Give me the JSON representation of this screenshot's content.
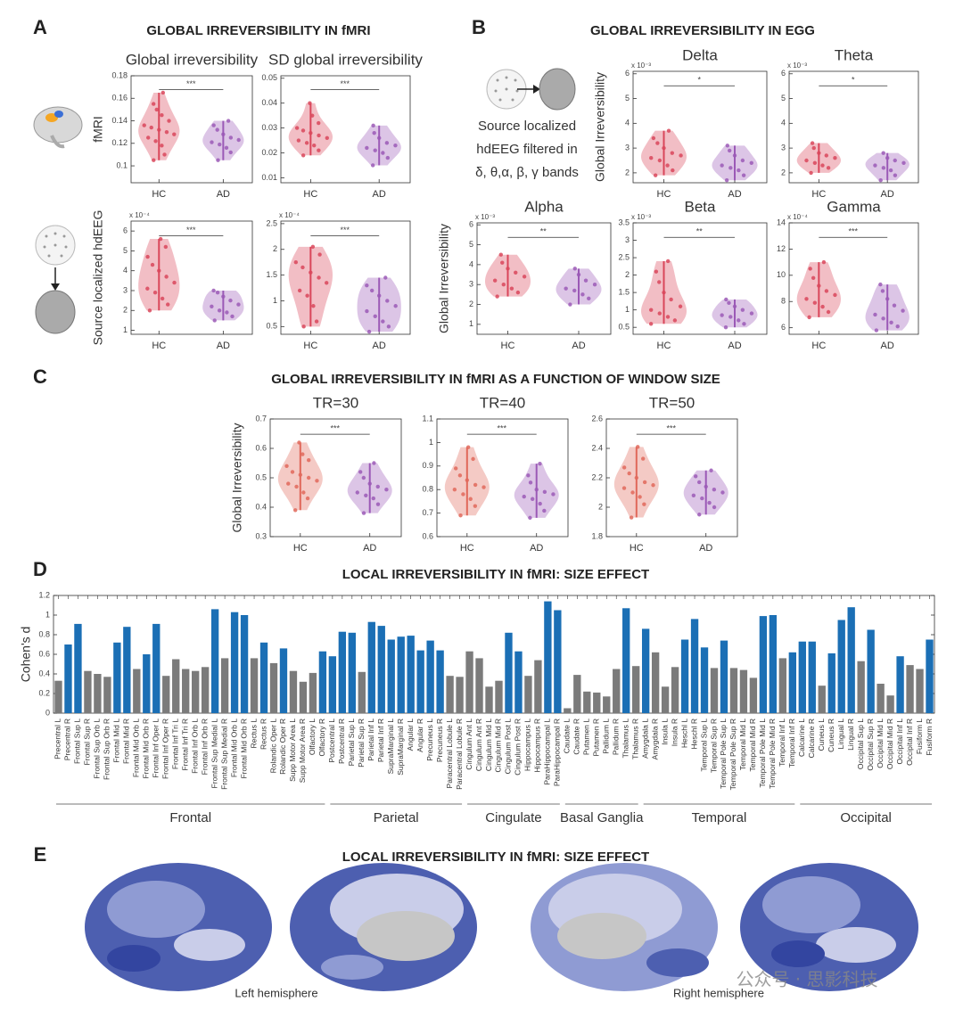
{
  "figure": {
    "panel_labels": [
      "A",
      "B",
      "C",
      "D",
      "E"
    ],
    "section_titles": [
      "GLOBAL IRREVERSIBILITY IN fMRI",
      "GLOBAL IRREVERSIBILITY IN EGG",
      "GLOBAL IRREVERSIBILITY  IN fMRI AS A FUNCTION OF WINDOW SIZE",
      "LOCAL IRREVERSIBILITY IN fMRI: SIZE EFFECT",
      "LOCAL IRREVERSIBILITY IN fMRI: SIZE EFFECT"
    ],
    "eeg_caption": [
      "Source localized",
      "hdEEG filtered in",
      "δ, θ,α, β, γ bands"
    ],
    "hemisphere_labels": [
      "Left hemisphere",
      "Right hemisphere"
    ],
    "watermark": "公众号 · 思影科技"
  },
  "chart_data": [
    {
      "type": "violin",
      "title": "Global irreversibility",
      "ylabel": "fMRI",
      "categories": [
        "HC",
        "AD"
      ],
      "significance": "***",
      "ylim": [
        0.085,
        0.18
      ],
      "yticks": [
        0.1,
        0.12,
        0.14,
        0.16,
        0.18
      ],
      "groups": [
        {
          "color": "#d9465a",
          "values": [
            0.105,
            0.11,
            0.118,
            0.122,
            0.125,
            0.128,
            0.13,
            0.132,
            0.134,
            0.136,
            0.14,
            0.145,
            0.15,
            0.155,
            0.165
          ]
        },
        {
          "color": "#9b59b6",
          "values": [
            0.105,
            0.112,
            0.116,
            0.119,
            0.121,
            0.123,
            0.125,
            0.128,
            0.132,
            0.136,
            0.14
          ]
        }
      ]
    },
    {
      "type": "violin",
      "title": "SD global irreversibility",
      "categories": [
        "HC",
        "AD"
      ],
      "significance": "***",
      "ylim": [
        0.008,
        0.051
      ],
      "yticks": [
        0.01,
        0.02,
        0.03,
        0.04,
        0.05
      ],
      "groups": [
        {
          "color": "#d9465a",
          "values": [
            0.019,
            0.021,
            0.023,
            0.024,
            0.025,
            0.026,
            0.027,
            0.028,
            0.029,
            0.03,
            0.032,
            0.035,
            0.04
          ]
        },
        {
          "color": "#9b59b6",
          "values": [
            0.015,
            0.018,
            0.02,
            0.021,
            0.022,
            0.023,
            0.024,
            0.026,
            0.028,
            0.031
          ]
        }
      ]
    },
    {
      "type": "violin",
      "ylabel": "Source localized hdEEG",
      "y_scale_label": "x 10⁻⁴",
      "categories": [
        "HC",
        "AD"
      ],
      "significance": "***",
      "ylim": [
        0.8,
        6.5
      ],
      "yticks": [
        1,
        2,
        3,
        4,
        5,
        6
      ],
      "groups": [
        {
          "color": "#d9465a",
          "values": [
            2,
            2.3,
            2.6,
            2.9,
            3.1,
            3.4,
            3.7,
            4,
            4.3,
            4.7,
            5.2,
            5.6
          ]
        },
        {
          "color": "#9b59b6",
          "values": [
            1.5,
            1.7,
            1.9,
            2,
            2.2,
            2.3,
            2.5,
            2.7,
            2.9,
            3
          ]
        }
      ]
    },
    {
      "type": "violin",
      "y_scale_label": "x 10⁻⁴",
      "categories": [
        "HC",
        "AD"
      ],
      "significance": "***",
      "ylim": [
        0.35,
        2.55
      ],
      "yticks": [
        0.5,
        1,
        1.5,
        2,
        2.5
      ],
      "groups": [
        {
          "color": "#d9465a",
          "values": [
            0.5,
            0.6,
            0.9,
            1.1,
            1.2,
            1.35,
            1.45,
            1.55,
            1.65,
            1.75,
            1.9,
            2.05
          ]
        },
        {
          "color": "#9b59b6",
          "values": [
            0.4,
            0.5,
            0.6,
            0.7,
            0.8,
            0.9,
            1,
            1.1,
            1.2,
            1.3,
            1.45
          ]
        }
      ]
    },
    {
      "type": "violin",
      "title": "Delta",
      "ylabel": "Global Irreversibility",
      "y_scale_label": "x 10⁻³",
      "categories": [
        "HC",
        "AD"
      ],
      "significance": "*",
      "ylim": [
        1.6,
        6.1
      ],
      "yticks": [
        2,
        3,
        4,
        5,
        6
      ],
      "groups": [
        {
          "color": "#d9465a",
          "values": [
            1.9,
            2.1,
            2.3,
            2.5,
            2.6,
            2.7,
            2.8,
            3,
            3.2,
            3.4,
            3.7
          ]
        },
        {
          "color": "#9b59b6",
          "values": [
            1.7,
            1.9,
            2.1,
            2.2,
            2.3,
            2.4,
            2.5,
            2.7,
            2.9,
            3.1
          ]
        }
      ]
    },
    {
      "type": "violin",
      "title": "Theta",
      "y_scale_label": "x 10⁻³",
      "categories": [
        "HC",
        "AD"
      ],
      "significance": "*",
      "ylim": [
        1.6,
        6.1
      ],
      "yticks": [
        2,
        3,
        4,
        5,
        6
      ],
      "groups": [
        {
          "color": "#d9465a",
          "values": [
            2,
            2.2,
            2.3,
            2.4,
            2.5,
            2.6,
            2.7,
            2.8,
            3,
            3.2
          ]
        },
        {
          "color": "#9b59b6",
          "values": [
            1.7,
            1.9,
            2.1,
            2.2,
            2.3,
            2.4,
            2.5,
            2.6,
            2.8
          ]
        }
      ]
    },
    {
      "type": "violin",
      "title": "Alpha",
      "ylabel": "Global Irreversibility",
      "y_scale_label": "x 10⁻³",
      "categories": [
        "HC",
        "AD"
      ],
      "significance": "**",
      "ylim": [
        0.5,
        6.1
      ],
      "yticks": [
        1,
        2,
        3,
        4,
        5,
        6
      ],
      "groups": [
        {
          "color": "#d9465a",
          "values": [
            2.4,
            2.6,
            2.8,
            3,
            3.2,
            3.4,
            3.6,
            3.8,
            4.1,
            4.5
          ]
        },
        {
          "color": "#9b59b6",
          "values": [
            2,
            2.3,
            2.5,
            2.7,
            2.8,
            3,
            3.2,
            3.5,
            3.8
          ]
        }
      ]
    },
    {
      "type": "violin",
      "title": "Beta",
      "y_scale_label": "x 10⁻³",
      "categories": [
        "HC",
        "AD"
      ],
      "significance": "**",
      "ylim": [
        0.3,
        3.5
      ],
      "yticks": [
        0.5,
        1,
        1.5,
        2,
        2.5,
        3,
        3.5
      ],
      "groups": [
        {
          "color": "#d9465a",
          "values": [
            0.6,
            0.7,
            0.8,
            0.9,
            1,
            1.1,
            1.3,
            1.5,
            1.8,
            2.1,
            2.4
          ]
        },
        {
          "color": "#9b59b6",
          "values": [
            0.5,
            0.6,
            0.7,
            0.8,
            0.85,
            0.9,
            1,
            1.1,
            1.2,
            1.3
          ]
        }
      ]
    },
    {
      "type": "violin",
      "title": "Gamma",
      "y_scale_label": "x 10⁻⁴",
      "categories": [
        "HC",
        "AD"
      ],
      "significance": "***",
      "ylim": [
        5.5,
        14
      ],
      "yticks": [
        6,
        8,
        10,
        12,
        14
      ],
      "groups": [
        {
          "color": "#d9465a",
          "values": [
            6.8,
            7.2,
            7.6,
            7.9,
            8.2,
            8.5,
            8.8,
            9.2,
            9.8,
            10.5,
            11
          ]
        },
        {
          "color": "#9b59b6",
          "values": [
            5.8,
            6.1,
            6.4,
            6.7,
            7,
            7.3,
            7.7,
            8.2,
            8.8,
            9.3
          ]
        }
      ]
    },
    {
      "type": "violin",
      "title": "TR=30",
      "ylabel": "Global Irreversibility",
      "categories": [
        "HC",
        "AD"
      ],
      "significance": "***",
      "ylim": [
        0.3,
        0.7
      ],
      "yticks": [
        0.3,
        0.4,
        0.5,
        0.6,
        0.7
      ],
      "groups": [
        {
          "color": "#e0685a",
          "values": [
            0.39,
            0.43,
            0.45,
            0.47,
            0.48,
            0.49,
            0.5,
            0.51,
            0.52,
            0.54,
            0.56,
            0.58,
            0.62
          ]
        },
        {
          "color": "#9b59b6",
          "values": [
            0.38,
            0.41,
            0.43,
            0.44,
            0.45,
            0.46,
            0.47,
            0.48,
            0.5,
            0.52,
            0.55
          ]
        }
      ]
    },
    {
      "type": "violin",
      "title": "TR=40",
      "categories": [
        "HC",
        "AD"
      ],
      "significance": "***",
      "ylim": [
        0.6,
        1.1
      ],
      "yticks": [
        0.6,
        0.7,
        0.8,
        0.9,
        1,
        1.1
      ],
      "groups": [
        {
          "color": "#e0685a",
          "values": [
            0.69,
            0.73,
            0.76,
            0.78,
            0.8,
            0.81,
            0.82,
            0.84,
            0.86,
            0.89,
            0.93,
            0.98
          ]
        },
        {
          "color": "#9b59b6",
          "values": [
            0.68,
            0.71,
            0.74,
            0.76,
            0.77,
            0.78,
            0.79,
            0.8,
            0.83,
            0.86,
            0.91
          ]
        }
      ]
    },
    {
      "type": "violin",
      "title": "TR=50",
      "categories": [
        "HC",
        "AD"
      ],
      "significance": "***",
      "ylim": [
        1.8,
        2.6
      ],
      "yticks": [
        1.8,
        2,
        2.2,
        2.4,
        2.6
      ],
      "groups": [
        {
          "color": "#e0685a",
          "values": [
            1.93,
            2.02,
            2.07,
            2.1,
            2.13,
            2.15,
            2.17,
            2.2,
            2.23,
            2.27,
            2.33,
            2.41
          ]
        },
        {
          "color": "#9b59b6",
          "values": [
            1.95,
            2,
            2.03,
            2.06,
            2.08,
            2.1,
            2.12,
            2.14,
            2.17,
            2.21,
            2.25
          ]
        }
      ]
    },
    {
      "type": "bar",
      "ylabel": "Cohen's d",
      "ylim": [
        0,
        1.2
      ],
      "yticks": [
        0,
        0.2,
        0.4,
        0.6,
        0.8,
        1,
        1.2
      ],
      "groups": [
        {
          "label": "Frontal",
          "categories": [
            "Precentral L",
            "Precentral R",
            "Frontal Sup L",
            "Frontal Sup R",
            "Frontal Sup Orb L",
            "Frontal Sup Orb R",
            "Frontal Mid L",
            "Frontal Mid R",
            "Frontal Mid Orb L",
            "Frontal Mid Orb R",
            "Frontal Inf Oper L",
            "Frontal Inf Oper R",
            "Frontal Inf Tri L",
            "Frontal Inf Tri R",
            "Frontal Inf Orb L",
            "Frontal Inf Orb R",
            "Frontal Sup Medial L",
            "Frontal Sup Medial R",
            "Frontal Mid Orb L",
            "Frontal Mid Orb R",
            "Rectus L",
            "Rectus R",
            "Rolandic Oper L",
            "Rolandic Oper R",
            "Supp Motor Area L",
            "Supp Motor Area R",
            "Olfactory L",
            "Olfactory R"
          ],
          "values": [
            0.33,
            0.7,
            0.91,
            0.43,
            0.4,
            0.37,
            0.72,
            0.88,
            0.45,
            0.6,
            0.91,
            0.38,
            0.55,
            0.45,
            0.43,
            0.47,
            1.06,
            0.56,
            1.03,
            1,
            0.56,
            0.72,
            0.51,
            0.66,
            0.43,
            0.32,
            0.41,
            0.63
          ],
          "colors": [
            "#7b7b7b",
            "#1b6fb5",
            "#1b6fb5",
            "#7b7b7b",
            "#7b7b7b",
            "#7b7b7b",
            "#1b6fb5",
            "#1b6fb5",
            "#7b7b7b",
            "#1b6fb5",
            "#1b6fb5",
            "#7b7b7b",
            "#7b7b7b",
            "#7b7b7b",
            "#7b7b7b",
            "#7b7b7b",
            "#1b6fb5",
            "#7b7b7b",
            "#1b6fb5",
            "#1b6fb5",
            "#7b7b7b",
            "#1b6fb5",
            "#7b7b7b",
            "#1b6fb5",
            "#7b7b7b",
            "#7b7b7b",
            "#7b7b7b",
            "#1b6fb5"
          ]
        },
        {
          "label": "Parietal",
          "categories": [
            "Postcentral L",
            "Postcentral R",
            "Parietal Sup L",
            "Parietal Sup R",
            "Parietal Inf L",
            "Parietal Inf R",
            "SupraMarginal L",
            "SupraMarginal R",
            "Angular L",
            "Angular R",
            "Precuneus L",
            "Precuneus R",
            "Paracentral Lobule L",
            "Paracentral Lobule R"
          ],
          "values": [
            0.58,
            0.83,
            0.82,
            0.42,
            0.93,
            0.89,
            0.75,
            0.78,
            0.79,
            0.64,
            0.74,
            0.64,
            0.38,
            0.37
          ],
          "colors": [
            "#1b6fb5",
            "#1b6fb5",
            "#1b6fb5",
            "#7b7b7b",
            "#1b6fb5",
            "#1b6fb5",
            "#1b6fb5",
            "#1b6fb5",
            "#1b6fb5",
            "#1b6fb5",
            "#1b6fb5",
            "#1b6fb5",
            "#7b7b7b",
            "#7b7b7b"
          ]
        },
        {
          "label": "Cingulate",
          "categories": [
            "Cingulum Ant L",
            "Cingulum Ant R",
            "Cingulum Mid L",
            "Cingulum Mid R",
            "Cingulum Post L",
            "Cingulum Post R",
            "Hippocampus L",
            "Hippocampus R",
            "ParaHippocampal L",
            "ParaHippocampal R"
          ],
          "values": [
            0.63,
            0.56,
            0.27,
            0.33,
            0.82,
            0.63,
            0.38,
            0.54,
            1.14,
            1.05
          ],
          "colors": [
            "#7b7b7b",
            "#7b7b7b",
            "#7b7b7b",
            "#7b7b7b",
            "#1b6fb5",
            "#1b6fb5",
            "#7b7b7b",
            "#7b7b7b",
            "#1b6fb5",
            "#1b6fb5"
          ]
        },
        {
          "label": "Basal Ganglia",
          "categories": [
            "Caudate L",
            "Caudate R",
            "Putamen L",
            "Putamen R",
            "Pallidum L",
            "Pallidum R",
            "Thalamus L",
            "Thalamus R"
          ],
          "values": [
            0.05,
            0.39,
            0.22,
            0.21,
            0.17,
            0.45,
            1.07,
            0.48
          ],
          "colors": [
            "#7b7b7b",
            "#7b7b7b",
            "#7b7b7b",
            "#7b7b7b",
            "#7b7b7b",
            "#7b7b7b",
            "#1b6fb5",
            "#7b7b7b"
          ]
        },
        {
          "label": "Temporal",
          "categories": [
            "Amygdala L",
            "Amygdala R",
            "Insula L",
            "Insula R",
            "Heschl L",
            "Heschl R",
            "Temporal Sup L",
            "Temporal Sup R",
            "Temporal Pole Sup L",
            "Temporal Pole Sup R",
            "Temporal Mid L",
            "Temporal Mid R",
            "Temporal Pole Mid L",
            "Temporal Pole Mid R",
            "Temporal Inf L",
            "Temporal Inf R"
          ],
          "values": [
            0.86,
            0.62,
            0.27,
            0.47,
            0.75,
            0.96,
            0.67,
            0.46,
            0.74,
            0.46,
            0.44,
            0.36,
            0.99,
            1,
            0.56,
            0.62
          ],
          "colors": [
            "#1b6fb5",
            "#7b7b7b",
            "#7b7b7b",
            "#7b7b7b",
            "#1b6fb5",
            "#1b6fb5",
            "#1b6fb5",
            "#7b7b7b",
            "#1b6fb5",
            "#7b7b7b",
            "#7b7b7b",
            "#7b7b7b",
            "#1b6fb5",
            "#1b6fb5",
            "#7b7b7b",
            "#1b6fb5"
          ]
        },
        {
          "label": "Occipital",
          "categories": [
            "Calcarine L",
            "Calcarine R",
            "Cuneus L",
            "Cuneus R",
            "Lingual L",
            "Lingual R",
            "Occipital Sup L",
            "Occipital Sup R",
            "Occipital Mid L",
            "Occipital Mid R",
            "Occipital Inf L",
            "Occipital Inf R",
            "Fusiform L",
            "Fusiform R"
          ],
          "values": [
            0.73,
            0.73,
            0.28,
            0.61,
            0.95,
            1.08,
            0.53,
            0.85,
            0.3,
            0.18,
            0.58,
            0.49,
            0.45,
            0.75
          ],
          "colors": [
            "#1b6fb5",
            "#1b6fb5",
            "#7b7b7b",
            "#1b6fb5",
            "#1b6fb5",
            "#1b6fb5",
            "#7b7b7b",
            "#1b6fb5",
            "#7b7b7b",
            "#7b7b7b",
            "#1b6fb5",
            "#7b7b7b",
            "#7b7b7b",
            "#1b6fb5"
          ]
        }
      ]
    }
  ]
}
